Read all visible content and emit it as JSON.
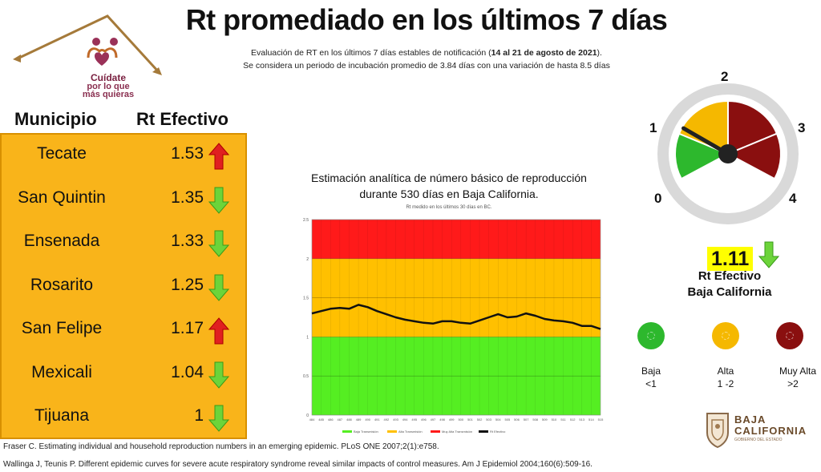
{
  "logo": {
    "line1": "Cuídate",
    "line2": "por lo que",
    "line3": "más quieras",
    "icon": "family-heart-house-icon"
  },
  "header": {
    "title": "Rt promediado en los últimos 7 días",
    "subtitle_part1": "Evaluación de RT en los últimos 7 días estables de notificación (",
    "subtitle_bold": "14 al 21 de agosto de 2021",
    "subtitle_part2": ").",
    "subtitle_line2": "Se considera un periodo de incubación promedio de 3.84 días con una variación de hasta 8.5 días"
  },
  "table": {
    "col_municipio": "Municipio",
    "col_rt": "Rt Efectivo",
    "rows": [
      {
        "municipio": "Tecate",
        "rt": "1.53",
        "trend": "up"
      },
      {
        "municipio": "San Quintin",
        "rt": "1.35",
        "trend": "down"
      },
      {
        "municipio": "Ensenada",
        "rt": "1.33",
        "trend": "down"
      },
      {
        "municipio": "Rosarito",
        "rt": "1.25",
        "trend": "down"
      },
      {
        "municipio": "San Felipe",
        "rt": "1.17",
        "trend": "up"
      },
      {
        "municipio": "Mexicali",
        "rt": "1.04",
        "trend": "down"
      },
      {
        "municipio": "Tijuana",
        "rt": "1",
        "trend": "down"
      }
    ],
    "colors": {
      "up": "#e02020",
      "down": "#6cd43a",
      "panel": "#f9b41a"
    }
  },
  "chart_data": {
    "type": "line",
    "title_line1": "Estimación analítica de número básico de reproducción",
    "title_line2": "durante 530 días en Baja California.",
    "subtitle": "Rt medido en los últimos 30 días en BC.",
    "ylim": [
      0,
      2.5
    ],
    "yticks": [
      "0",
      "0.5",
      "1",
      "1.5",
      "2",
      "2.5"
    ],
    "x": [
      484,
      485,
      486,
      487,
      488,
      489,
      490,
      491,
      492,
      493,
      494,
      495,
      496,
      497,
      498,
      499,
      500,
      501,
      502,
      503,
      504,
      505,
      506,
      507,
      508,
      509,
      510,
      511,
      512,
      513,
      514,
      515
    ],
    "series": [
      {
        "name": "Rt Efectivo",
        "color": "#111111",
        "values": [
          1.3,
          1.33,
          1.36,
          1.37,
          1.36,
          1.41,
          1.38,
          1.33,
          1.29,
          1.25,
          1.22,
          1.2,
          1.18,
          1.17,
          1.2,
          1.2,
          1.18,
          1.17,
          1.21,
          1.25,
          1.29,
          1.25,
          1.26,
          1.3,
          1.27,
          1.23,
          1.21,
          1.2,
          1.18,
          1.14,
          1.14,
          1.1
        ]
      }
    ],
    "bands": [
      {
        "name": "Baja Transmisión",
        "from": 0,
        "to": 1,
        "color": "#55ee22"
      },
      {
        "name": "Alta Transmisión",
        "from": 1,
        "to": 2,
        "color": "#ffc000"
      },
      {
        "name": "Muy Alta Transmisión",
        "from": 2,
        "to": 2.5,
        "color": "#ff1a1a"
      }
    ],
    "legend": [
      "Baja Transmisión",
      "Alta Transmisión",
      "Muy Alta Transmisión",
      "Rt Efectivo"
    ],
    "legend_position": "bottom",
    "grid": true
  },
  "gauge": {
    "labels": [
      "0",
      "1",
      "2",
      "3",
      "4"
    ],
    "value": 1.11,
    "max": 4,
    "colors": {
      "green": "#2db82d",
      "yellow": "#f5b800",
      "red": "#8a0f0f",
      "ring": "#d9d9d9"
    }
  },
  "state": {
    "value": "1.11",
    "trend": "down",
    "label1": "Rt Efectivo",
    "label2": "Baja California"
  },
  "legend_circles": [
    {
      "label": "Baja",
      "range": "<1",
      "color": "#2db82d"
    },
    {
      "label": "Alta",
      "range": "1 -2",
      "color": "#f5b800"
    },
    {
      "label": "Muy Alta",
      "range": ">2",
      "color": "#8a0f0f"
    }
  ],
  "bc_logo": {
    "line1": "BAJA",
    "line2": "CALIFORNIA",
    "line3": "GOBIERNO DEL ESTADO",
    "icon": "state-shield-icon"
  },
  "references": [
    "Fraser C. Estimating individual and household reproduction numbers in an emerging epidemic. PLoS ONE 2007;2(1):e758.",
    "Wallinga J, Teunis P. Different epidemic curves for severe acute respiratory syndrome reveal similar impacts of control measures. Am J Epidemiol 2004;160(6):509-16."
  ]
}
